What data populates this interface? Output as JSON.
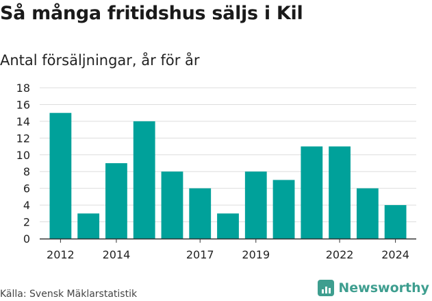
{
  "header": {
    "title": "Så många fritidshus säljs i Kil",
    "subtitle": "Antal försäljningar, år för år"
  },
  "footer": {
    "source": "Källa: Svensk Mäklarstatistik",
    "brand": "Newsworthy"
  },
  "colors": {
    "bar": "#00a19a",
    "grid": "#dddddd",
    "axis": "#333333",
    "brand": "#3e9e8f"
  },
  "chart_data": {
    "type": "bar",
    "title": "Så många fritidshus säljs i Kil",
    "subtitle": "Antal försäljningar, år för år",
    "categories": [
      "2012",
      "2013",
      "2014",
      "2015",
      "2016",
      "2017",
      "2018",
      "2019",
      "2020",
      "2021",
      "2022",
      "2023",
      "2024"
    ],
    "values": [
      15,
      3,
      9,
      14,
      8,
      6,
      3,
      8,
      7,
      11,
      11,
      6,
      4
    ],
    "x_tick_labels": [
      "2012",
      "2014",
      "2017",
      "2019",
      "2022",
      "2024"
    ],
    "y_ticks": [
      0,
      2,
      4,
      6,
      8,
      10,
      12,
      14,
      16,
      18
    ],
    "ylim": [
      0,
      18
    ],
    "xlabel": "",
    "ylabel": "",
    "grid": true,
    "legend": "none"
  }
}
